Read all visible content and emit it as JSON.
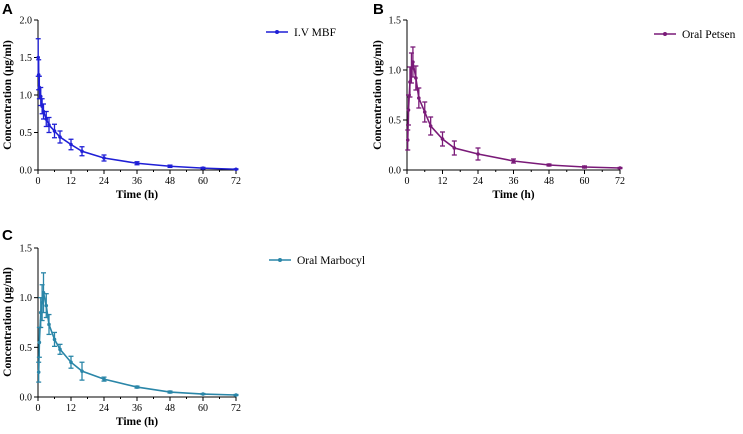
{
  "chart_data": [
    {
      "panel": "A",
      "type": "line",
      "title": "",
      "xlabel": "Time (h)",
      "ylabel": "Concentration (μg/ml)",
      "xlim": [
        0,
        72
      ],
      "ylim": [
        0,
        2.0
      ],
      "xticks": [
        "0",
        "12",
        "24",
        "36",
        "48",
        "60",
        "72"
      ],
      "yticks": [
        "0.0",
        "0.5",
        "1.0",
        "1.5",
        "2.0"
      ],
      "color": "#1f1fd6",
      "series": [
        {
          "name": "I.V MBF",
          "x": [
            0.083,
            0.25,
            0.5,
            1,
            1.5,
            2,
            3,
            4,
            6,
            8,
            12,
            16,
            24,
            36,
            48,
            60,
            72
          ],
          "y": [
            1.5,
            1.27,
            1.1,
            0.98,
            0.85,
            0.78,
            0.68,
            0.6,
            0.52,
            0.44,
            0.34,
            0.25,
            0.16,
            0.09,
            0.05,
            0.025,
            0.01
          ],
          "err": [
            0.25,
            0.2,
            0.15,
            0.12,
            0.1,
            0.1,
            0.1,
            0.1,
            0.09,
            0.08,
            0.07,
            0.06,
            0.04,
            0.02,
            0.015,
            0.01,
            0.005
          ]
        }
      ]
    },
    {
      "panel": "B",
      "type": "line",
      "title": "",
      "xlabel": "Time (h)",
      "ylabel": "Concentration (μg/ml)",
      "xlim": [
        0,
        72
      ],
      "ylim": [
        0,
        1.5
      ],
      "xticks": [
        "0",
        "12",
        "24",
        "36",
        "48",
        "60",
        "72"
      ],
      "yticks": [
        "0.0",
        "0.5",
        "1.0",
        "1.5"
      ],
      "color": "#7a1a78",
      "series": [
        {
          "name": "Oral Petsen",
          "x": [
            0.25,
            0.5,
            1,
            1.5,
            2,
            3,
            4,
            6,
            8,
            12,
            16,
            24,
            36,
            48,
            60,
            72
          ],
          "y": [
            0.3,
            0.6,
            0.88,
            1.02,
            1.08,
            0.92,
            0.72,
            0.58,
            0.44,
            0.31,
            0.22,
            0.16,
            0.09,
            0.05,
            0.03,
            0.02
          ],
          "err": [
            0.1,
            0.15,
            0.15,
            0.15,
            0.15,
            0.12,
            0.1,
            0.1,
            0.09,
            0.07,
            0.07,
            0.06,
            0.02,
            0.01,
            0.01,
            0.005
          ]
        }
      ]
    },
    {
      "panel": "C",
      "type": "line",
      "title": "",
      "xlabel": "Time (h)",
      "ylabel": "Concentration (μg/ml)",
      "xlim": [
        0,
        72
      ],
      "ylim": [
        0,
        1.5
      ],
      "xticks": [
        "0",
        "12",
        "24",
        "36",
        "48",
        "60",
        "72"
      ],
      "yticks": [
        "0.0",
        "0.5",
        "1.0",
        "1.5"
      ],
      "color": "#2a86a8",
      "series": [
        {
          "name": "Oral Marbocyl",
          "x": [
            0.25,
            0.5,
            1,
            1.5,
            2,
            3,
            4,
            6,
            8,
            12,
            16,
            24,
            36,
            48,
            60,
            72
          ],
          "y": [
            0.25,
            0.55,
            0.85,
            0.95,
            1.05,
            0.92,
            0.73,
            0.58,
            0.48,
            0.35,
            0.26,
            0.18,
            0.1,
            0.05,
            0.03,
            0.02
          ],
          "err": [
            0.1,
            0.15,
            0.15,
            0.18,
            0.2,
            0.12,
            0.1,
            0.07,
            0.05,
            0.06,
            0.09,
            0.02,
            0.01,
            0.01,
            0.005,
            0.005
          ]
        }
      ]
    }
  ]
}
